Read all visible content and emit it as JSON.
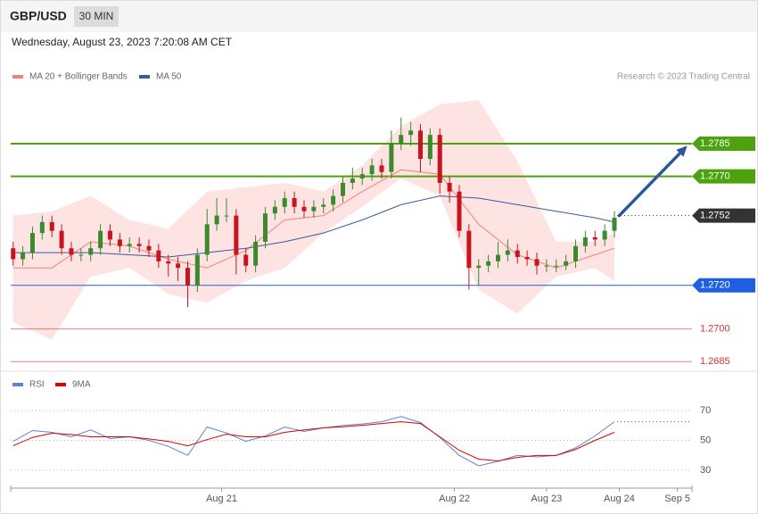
{
  "header": {
    "symbol": "GBP/USD",
    "interval": "30 MIN",
    "timestamp": "Wednesday, August 23, 2023 7:20:08 AM CET"
  },
  "chart_data": [
    {
      "type": "candlestick",
      "source": "Research © 2023 Trading Central",
      "xlim": [
        -7.25,
        63
      ],
      "ylim": [
        1.2681,
        1.2812
      ],
      "candles": {
        "up_color": "#3c8a2e",
        "down_color": "#c8141e",
        "x": [
          -7,
          -6,
          -5,
          -4,
          -3,
          -2,
          -1,
          0,
          1,
          2,
          3,
          4,
          5,
          6,
          7,
          8,
          9,
          10,
          11,
          12,
          13,
          14,
          15,
          16,
          17,
          18,
          19,
          20,
          21,
          22,
          23,
          24,
          25,
          26,
          27,
          28,
          29,
          30,
          31,
          32,
          33,
          34,
          35,
          36,
          37,
          38,
          39,
          40,
          41,
          42,
          43,
          44,
          45,
          46,
          47,
          48,
          49,
          50,
          51,
          52,
          53,
          54,
          55
        ],
        "open": [
          1.2737,
          1.2732,
          1.2735,
          1.2744,
          1.2749,
          1.2745,
          1.2737,
          1.2734,
          1.2734,
          1.2737,
          1.2745,
          1.2741,
          1.2738,
          1.2739,
          1.2738,
          1.2736,
          1.2731,
          1.273,
          1.2728,
          1.272,
          1.2734,
          1.2748,
          1.2752,
          1.2752,
          1.2734,
          1.2729,
          1.274,
          1.2753,
          1.2756,
          1.276,
          1.2756,
          1.2754,
          1.2756,
          1.2757,
          1.2761,
          1.2767,
          1.2769,
          1.2771,
          1.2775,
          1.2772,
          1.2785,
          1.2789,
          1.2791,
          1.2778,
          1.2789,
          1.2767,
          1.2763,
          1.2745,
          1.2728,
          1.2729,
          1.2731,
          1.2734,
          1.2736,
          1.2733,
          1.2732,
          1.2729,
          1.2729,
          1.2729,
          1.2731,
          1.2738,
          1.2742,
          1.2741,
          1.2745
        ],
        "high": [
          1.274,
          1.2738,
          1.2747,
          1.2752,
          1.2752,
          1.2748,
          1.274,
          1.2737,
          1.274,
          1.2748,
          1.2748,
          1.2744,
          1.2742,
          1.2742,
          1.2741,
          1.2739,
          1.2734,
          1.2733,
          1.2731,
          1.2737,
          1.2755,
          1.276,
          1.276,
          1.2755,
          1.2737,
          1.2743,
          1.2756,
          1.2759,
          1.2763,
          1.2763,
          1.2759,
          1.2759,
          1.276,
          1.2764,
          1.277,
          1.2774,
          1.2774,
          1.2778,
          1.2778,
          1.2791,
          1.2797,
          1.2795,
          1.2794,
          1.2792,
          1.2792,
          1.277,
          1.2766,
          1.2748,
          1.2732,
          1.2734,
          1.274,
          1.2741,
          1.2739,
          1.2736,
          1.2735,
          1.2732,
          1.2732,
          1.2734,
          1.2741,
          1.2745,
          1.2745,
          1.2748,
          1.2754
        ],
        "low": [
          1.2729,
          1.2729,
          1.2732,
          1.2741,
          1.2742,
          1.2734,
          1.2731,
          1.2731,
          1.2731,
          1.2734,
          1.2738,
          1.2735,
          1.2735,
          1.2735,
          1.2733,
          1.2728,
          1.2724,
          1.2722,
          1.271,
          1.2717,
          1.2731,
          1.2745,
          1.2749,
          1.2725,
          1.2726,
          1.2726,
          1.2737,
          1.275,
          1.2753,
          1.2753,
          1.2751,
          1.2751,
          1.2753,
          1.2754,
          1.2758,
          1.2764,
          1.2766,
          1.2768,
          1.2769,
          1.2769,
          1.2782,
          1.2784,
          1.2772,
          1.2775,
          1.2762,
          1.2758,
          1.2742,
          1.2718,
          1.272,
          1.2726,
          1.2728,
          1.2731,
          1.273,
          1.2729,
          1.2725,
          1.2726,
          1.2726,
          1.2727,
          1.2728,
          1.2735,
          1.2738,
          1.2738,
          1.2742
        ],
        "close": [
          1.2732,
          1.2735,
          1.2744,
          1.2749,
          1.2745,
          1.2737,
          1.2734,
          1.2734,
          1.2737,
          1.2745,
          1.2741,
          1.2738,
          1.2739,
          1.2738,
          1.2736,
          1.2731,
          1.273,
          1.2728,
          1.272,
          1.2734,
          1.2748,
          1.2752,
          1.2752,
          1.2734,
          1.2729,
          1.274,
          1.2753,
          1.2756,
          1.276,
          1.2756,
          1.2754,
          1.2756,
          1.2757,
          1.2761,
          1.2767,
          1.2769,
          1.2771,
          1.2775,
          1.2772,
          1.2785,
          1.2789,
          1.2791,
          1.2778,
          1.2789,
          1.2767,
          1.2763,
          1.2745,
          1.2728,
          1.2729,
          1.2731,
          1.2734,
          1.2736,
          1.2733,
          1.2732,
          1.2729,
          1.2729,
          1.2729,
          1.2731,
          1.2738,
          1.2742,
          1.2741,
          1.2745,
          1.2751
        ]
      },
      "x": [
        -7,
        -3,
        1,
        5,
        9,
        13,
        17,
        21,
        25,
        29,
        33,
        37,
        41,
        45,
        49,
        53,
        55
      ],
      "series": [
        {
          "name": "MA 20 + Bollinger Bands",
          "color": "#f4807a",
          "values": [
            1.2728,
            1.2728,
            1.274,
            1.2738,
            1.2732,
            1.2728,
            1.2736,
            1.275,
            1.2752,
            1.2763,
            1.2773,
            1.2771,
            1.2748,
            1.2734,
            1.2728,
            1.2734,
            1.2737
          ],
          "upper": [
            1.2752,
            1.2754,
            1.2761,
            1.275,
            1.2746,
            1.2763,
            1.2765,
            1.2767,
            1.2763,
            1.2775,
            1.2793,
            1.2803,
            1.2805,
            1.2777,
            1.274,
            1.274,
            1.2744
          ],
          "lower": [
            1.2703,
            1.2695,
            1.2724,
            1.2728,
            1.2716,
            1.2712,
            1.2722,
            1.2728,
            1.2744,
            1.2756,
            1.2769,
            1.2761,
            1.2718,
            1.2707,
            1.2724,
            1.2728,
            1.2722
          ]
        },
        {
          "name": "MA 50",
          "color": "#3a5b9a",
          "values": [
            1.2735,
            1.2735,
            1.2735,
            1.2734,
            1.2733,
            1.2735,
            1.2737,
            1.274,
            1.2744,
            1.275,
            1.2757,
            1.2761,
            1.276,
            1.2757,
            1.2754,
            1.2751,
            1.2749
          ]
        }
      ],
      "levels": [
        {
          "value": 1.2785,
          "color": "#4ca30d",
          "style": "box",
          "line": "solid"
        },
        {
          "value": 1.277,
          "label": "1.2770",
          "color": "#4ca30d",
          "style": "box",
          "line": "solid"
        },
        {
          "value": 1.2752,
          "color": "#333333",
          "style": "box",
          "line": "dotted"
        },
        {
          "value": 1.272,
          "label": "1.2720",
          "color": "#1f5fe0",
          "style": "box",
          "line": "solid"
        },
        {
          "value": 1.27,
          "label": "1.2700",
          "color": "#e03030",
          "style": "text",
          "line": "solid"
        },
        {
          "value": 1.2685,
          "color": "#e03030",
          "style": "text",
          "line": "solid"
        }
      ],
      "arrow": {
        "x": [
          55.5,
          62.5
        ],
        "y": [
          1.2752,
          1.2784
        ],
        "color": "#2b5797"
      }
    },
    {
      "type": "line",
      "xlim": [
        -7.25,
        63
      ],
      "ylim": [
        20,
        82
      ],
      "yticks": [
        30,
        50,
        70
      ],
      "grid": true,
      "xticks": [
        {
          "value": 14.5,
          "label": "Aug 21"
        },
        {
          "value": 38.5,
          "label": "Aug 22"
        },
        {
          "value": 48,
          "label": "Aug 23"
        },
        {
          "value": 55.5,
          "label": "Aug 24"
        },
        {
          "value": 61.5,
          "label": "Sep 5"
        }
      ],
      "x": [
        -7,
        -5,
        -3,
        -1,
        1,
        3,
        5,
        7,
        9,
        11,
        13,
        15,
        17,
        19,
        21,
        23,
        25,
        27,
        29,
        31,
        33,
        35,
        37,
        39,
        41,
        43,
        45,
        47,
        49,
        51,
        53,
        55
      ],
      "series": [
        {
          "name": "RSI",
          "color": "#5b84d8",
          "values": [
            49.4,
            56.6,
            55.4,
            52.4,
            57,
            51.2,
            52.4,
            50,
            46,
            40,
            59,
            55,
            49.4,
            53,
            59,
            56,
            58.4,
            60,
            61,
            62.5,
            66,
            62,
            52,
            40,
            33,
            36,
            40,
            39,
            40,
            45,
            53,
            62.5
          ]
        },
        {
          "name": "9MA",
          "color": "#e00000",
          "values": [
            46.4,
            52,
            54.8,
            54,
            52.4,
            52.4,
            52.4,
            51,
            49.4,
            46.4,
            50.5,
            54.2,
            52.4,
            52.4,
            55.4,
            57,
            58.4,
            59.2,
            60.1,
            61.3,
            62.5,
            61.3,
            52.4,
            43.4,
            37.5,
            36.3,
            38.7,
            39.9,
            39.9,
            44,
            50,
            55.4
          ]
        }
      ]
    }
  ]
}
